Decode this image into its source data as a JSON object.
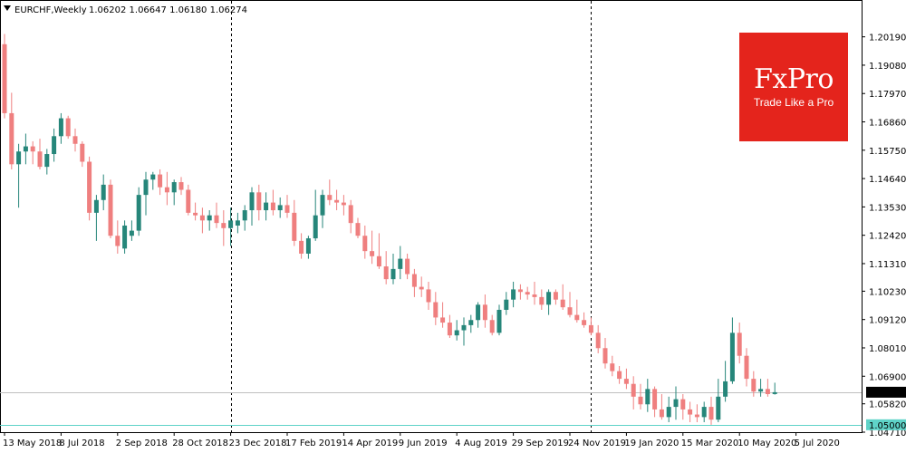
{
  "header": {
    "symbol": "EURCHF,Weekly",
    "ohlc": "1.06202 1.06647 1.06180 1.06274"
  },
  "logo": {
    "brand": "FxPro",
    "tagline": "Trade Like a Pro",
    "color": "#e4241c"
  },
  "colors": {
    "bull": "#26867a",
    "bear": "#ef7f7f",
    "grid": "#d9d9d9",
    "vline": "#000000",
    "support": "#5fd3c8"
  },
  "chart_data": {
    "type": "candlestick",
    "symbol": "EURCHF",
    "timeframe": "Weekly",
    "ylim": [
      1.0471,
      1.211
    ],
    "yticks": [
      "1.20190",
      "1.19080",
      "1.17970",
      "1.16860",
      "1.15750",
      "1.14640",
      "1.13530",
      "1.12420",
      "1.11310",
      "1.10230",
      "1.09120",
      "1.08010",
      "1.06900",
      "1.05820",
      "1.04710"
    ],
    "xticks": [
      {
        "label": "13 May 2018",
        "index": 0
      },
      {
        "label": "8 Jul 2018",
        "index": 8
      },
      {
        "label": "2 Sep 2018",
        "index": 16
      },
      {
        "label": "28 Oct 2018",
        "index": 24
      },
      {
        "label": "23 Dec 2018",
        "index": 32
      },
      {
        "label": "17 Feb 2019",
        "index": 40
      },
      {
        "label": "14 Apr 2019",
        "index": 48
      },
      {
        "label": "9 Jun 2019",
        "index": 56
      },
      {
        "label": "4 Aug 2019",
        "index": 64
      },
      {
        "label": "29 Sep 2019",
        "index": 72
      },
      {
        "label": "24 Nov 2019",
        "index": 80
      },
      {
        "label": "19 Jan 2020",
        "index": 88
      },
      {
        "label": "15 Mar 2020",
        "index": 96
      },
      {
        "label": "10 May 2020",
        "index": 104
      },
      {
        "label": "5 Jul 2020",
        "index": 112
      }
    ],
    "current_price": {
      "value": 1.06274,
      "label": "1.06274"
    },
    "support_level": {
      "value": 1.05,
      "label": "1.05000"
    },
    "vertical_markers": [
      32,
      83
    ],
    "candles": [
      {
        "o": 1.199,
        "h": 1.203,
        "l": 1.17,
        "c": 1.172
      },
      {
        "o": 1.172,
        "h": 1.18,
        "l": 1.15,
        "c": 1.152
      },
      {
        "o": 1.152,
        "h": 1.16,
        "l": 1.135,
        "c": 1.157
      },
      {
        "o": 1.157,
        "h": 1.164,
        "l": 1.152,
        "c": 1.159
      },
      {
        "o": 1.159,
        "h": 1.161,
        "l": 1.152,
        "c": 1.157
      },
      {
        "o": 1.157,
        "h": 1.162,
        "l": 1.15,
        "c": 1.151
      },
      {
        "o": 1.151,
        "h": 1.158,
        "l": 1.148,
        "c": 1.156
      },
      {
        "o": 1.156,
        "h": 1.166,
        "l": 1.153,
        "c": 1.163
      },
      {
        "o": 1.163,
        "h": 1.172,
        "l": 1.16,
        "c": 1.17
      },
      {
        "o": 1.17,
        "h": 1.171,
        "l": 1.162,
        "c": 1.163
      },
      {
        "o": 1.163,
        "h": 1.166,
        "l": 1.157,
        "c": 1.16
      },
      {
        "o": 1.16,
        "h": 1.161,
        "l": 1.151,
        "c": 1.153
      },
      {
        "o": 1.153,
        "h": 1.155,
        "l": 1.13,
        "c": 1.133
      },
      {
        "o": 1.133,
        "h": 1.14,
        "l": 1.122,
        "c": 1.138
      },
      {
        "o": 1.138,
        "h": 1.148,
        "l": 1.134,
        "c": 1.144
      },
      {
        "o": 1.144,
        "h": 1.146,
        "l": 1.123,
        "c": 1.124
      },
      {
        "o": 1.124,
        "h": 1.13,
        "l": 1.117,
        "c": 1.12
      },
      {
        "o": 1.119,
        "h": 1.13,
        "l": 1.117,
        "c": 1.128
      },
      {
        "o": 1.124,
        "h": 1.13,
        "l": 1.122,
        "c": 1.126
      },
      {
        "o": 1.126,
        "h": 1.143,
        "l": 1.124,
        "c": 1.14
      },
      {
        "o": 1.14,
        "h": 1.149,
        "l": 1.132,
        "c": 1.146
      },
      {
        "o": 1.146,
        "h": 1.149,
        "l": 1.142,
        "c": 1.148
      },
      {
        "o": 1.148,
        "h": 1.15,
        "l": 1.14,
        "c": 1.143
      },
      {
        "o": 1.143,
        "h": 1.149,
        "l": 1.136,
        "c": 1.141
      },
      {
        "o": 1.141,
        "h": 1.146,
        "l": 1.136,
        "c": 1.145
      },
      {
        "o": 1.145,
        "h": 1.147,
        "l": 1.14,
        "c": 1.142
      },
      {
        "o": 1.142,
        "h": 1.144,
        "l": 1.132,
        "c": 1.133
      },
      {
        "o": 1.133,
        "h": 1.137,
        "l": 1.13,
        "c": 1.132
      },
      {
        "o": 1.132,
        "h": 1.135,
        "l": 1.125,
        "c": 1.13
      },
      {
        "o": 1.13,
        "h": 1.134,
        "l": 1.126,
        "c": 1.132
      },
      {
        "o": 1.132,
        "h": 1.137,
        "l": 1.127,
        "c": 1.129
      },
      {
        "o": 1.129,
        "h": 1.134,
        "l": 1.12,
        "c": 1.127
      },
      {
        "o": 1.127,
        "h": 1.135,
        "l": 1.12,
        "c": 1.13
      },
      {
        "o": 1.128,
        "h": 1.133,
        "l": 1.125,
        "c": 1.13
      },
      {
        "o": 1.13,
        "h": 1.136,
        "l": 1.126,
        "c": 1.134
      },
      {
        "o": 1.134,
        "h": 1.143,
        "l": 1.128,
        "c": 1.141
      },
      {
        "o": 1.141,
        "h": 1.144,
        "l": 1.13,
        "c": 1.134
      },
      {
        "o": 1.134,
        "h": 1.141,
        "l": 1.13,
        "c": 1.137
      },
      {
        "o": 1.137,
        "h": 1.142,
        "l": 1.132,
        "c": 1.134
      },
      {
        "o": 1.134,
        "h": 1.139,
        "l": 1.131,
        "c": 1.136
      },
      {
        "o": 1.136,
        "h": 1.14,
        "l": 1.131,
        "c": 1.133
      },
      {
        "o": 1.133,
        "h": 1.138,
        "l": 1.12,
        "c": 1.122
      },
      {
        "o": 1.122,
        "h": 1.125,
        "l": 1.115,
        "c": 1.117
      },
      {
        "o": 1.117,
        "h": 1.124,
        "l": 1.115,
        "c": 1.123
      },
      {
        "o": 1.123,
        "h": 1.142,
        "l": 1.122,
        "c": 1.132
      },
      {
        "o": 1.132,
        "h": 1.142,
        "l": 1.127,
        "c": 1.14
      },
      {
        "o": 1.14,
        "h": 1.146,
        "l": 1.136,
        "c": 1.138
      },
      {
        "o": 1.138,
        "h": 1.142,
        "l": 1.134,
        "c": 1.137
      },
      {
        "o": 1.137,
        "h": 1.14,
        "l": 1.132,
        "c": 1.136
      },
      {
        "o": 1.136,
        "h": 1.138,
        "l": 1.125,
        "c": 1.129
      },
      {
        "o": 1.129,
        "h": 1.131,
        "l": 1.123,
        "c": 1.124
      },
      {
        "o": 1.124,
        "h": 1.128,
        "l": 1.115,
        "c": 1.118
      },
      {
        "o": 1.118,
        "h": 1.126,
        "l": 1.113,
        "c": 1.116
      },
      {
        "o": 1.116,
        "h": 1.125,
        "l": 1.111,
        "c": 1.112
      },
      {
        "o": 1.112,
        "h": 1.118,
        "l": 1.105,
        "c": 1.107
      },
      {
        "o": 1.107,
        "h": 1.117,
        "l": 1.105,
        "c": 1.111
      },
      {
        "o": 1.111,
        "h": 1.12,
        "l": 1.107,
        "c": 1.115
      },
      {
        "o": 1.115,
        "h": 1.117,
        "l": 1.107,
        "c": 1.109
      },
      {
        "o": 1.109,
        "h": 1.111,
        "l": 1.1,
        "c": 1.104
      },
      {
        "o": 1.104,
        "h": 1.108,
        "l": 1.1,
        "c": 1.103
      },
      {
        "o": 1.103,
        "h": 1.106,
        "l": 1.095,
        "c": 1.098
      },
      {
        "o": 1.098,
        "h": 1.102,
        "l": 1.089,
        "c": 1.092
      },
      {
        "o": 1.092,
        "h": 1.098,
        "l": 1.088,
        "c": 1.09
      },
      {
        "o": 1.09,
        "h": 1.093,
        "l": 1.084,
        "c": 1.085
      },
      {
        "o": 1.085,
        "h": 1.091,
        "l": 1.083,
        "c": 1.087
      },
      {
        "o": 1.087,
        "h": 1.092,
        "l": 1.081,
        "c": 1.089
      },
      {
        "o": 1.089,
        "h": 1.093,
        "l": 1.086,
        "c": 1.091
      },
      {
        "o": 1.091,
        "h": 1.098,
        "l": 1.088,
        "c": 1.097
      },
      {
        "o": 1.097,
        "h": 1.101,
        "l": 1.088,
        "c": 1.091
      },
      {
        "o": 1.091,
        "h": 1.093,
        "l": 1.085,
        "c": 1.086
      },
      {
        "o": 1.086,
        "h": 1.097,
        "l": 1.085,
        "c": 1.095
      },
      {
        "o": 1.095,
        "h": 1.102,
        "l": 1.093,
        "c": 1.099
      },
      {
        "o": 1.099,
        "h": 1.106,
        "l": 1.096,
        "c": 1.103
      },
      {
        "o": 1.103,
        "h": 1.105,
        "l": 1.099,
        "c": 1.102
      },
      {
        "o": 1.102,
        "h": 1.104,
        "l": 1.099,
        "c": 1.101
      },
      {
        "o": 1.101,
        "h": 1.106,
        "l": 1.097,
        "c": 1.1
      },
      {
        "o": 1.1,
        "h": 1.103,
        "l": 1.095,
        "c": 1.097
      },
      {
        "o": 1.097,
        "h": 1.103,
        "l": 1.093,
        "c": 1.102
      },
      {
        "o": 1.102,
        "h": 1.103,
        "l": 1.097,
        "c": 1.099
      },
      {
        "o": 1.099,
        "h": 1.105,
        "l": 1.095,
        "c": 1.096
      },
      {
        "o": 1.096,
        "h": 1.102,
        "l": 1.092,
        "c": 1.093
      },
      {
        "o": 1.093,
        "h": 1.099,
        "l": 1.09,
        "c": 1.091
      },
      {
        "o": 1.091,
        "h": 1.094,
        "l": 1.088,
        "c": 1.089
      },
      {
        "o": 1.089,
        "h": 1.092,
        "l": 1.085,
        "c": 1.086
      },
      {
        "o": 1.086,
        "h": 1.089,
        "l": 1.078,
        "c": 1.08
      },
      {
        "o": 1.08,
        "h": 1.084,
        "l": 1.072,
        "c": 1.074
      },
      {
        "o": 1.074,
        "h": 1.077,
        "l": 1.069,
        "c": 1.071
      },
      {
        "o": 1.071,
        "h": 1.073,
        "l": 1.066,
        "c": 1.068
      },
      {
        "o": 1.068,
        "h": 1.072,
        "l": 1.064,
        "c": 1.066
      },
      {
        "o": 1.066,
        "h": 1.069,
        "l": 1.056,
        "c": 1.061
      },
      {
        "o": 1.061,
        "h": 1.066,
        "l": 1.056,
        "c": 1.058
      },
      {
        "o": 1.058,
        "h": 1.068,
        "l": 1.055,
        "c": 1.064
      },
      {
        "o": 1.064,
        "h": 1.065,
        "l": 1.053,
        "c": 1.056
      },
      {
        "o": 1.056,
        "h": 1.062,
        "l": 1.052,
        "c": 1.053
      },
      {
        "o": 1.053,
        "h": 1.061,
        "l": 1.051,
        "c": 1.057
      },
      {
        "o": 1.057,
        "h": 1.065,
        "l": 1.052,
        "c": 1.06
      },
      {
        "o": 1.06,
        "h": 1.062,
        "l": 1.052,
        "c": 1.056
      },
      {
        "o": 1.056,
        "h": 1.059,
        "l": 1.051,
        "c": 1.054
      },
      {
        "o": 1.054,
        "h": 1.058,
        "l": 1.051,
        "c": 1.053
      },
      {
        "o": 1.053,
        "h": 1.059,
        "l": 1.051,
        "c": 1.057
      },
      {
        "o": 1.057,
        "h": 1.061,
        "l": 1.05,
        "c": 1.052
      },
      {
        "o": 1.052,
        "h": 1.068,
        "l": 1.051,
        "c": 1.061
      },
      {
        "o": 1.061,
        "h": 1.075,
        "l": 1.059,
        "c": 1.067
      },
      {
        "o": 1.067,
        "h": 1.092,
        "l": 1.066,
        "c": 1.086
      },
      {
        "o": 1.086,
        "h": 1.09,
        "l": 1.074,
        "c": 1.077
      },
      {
        "o": 1.077,
        "h": 1.08,
        "l": 1.065,
        "c": 1.068
      },
      {
        "o": 1.068,
        "h": 1.071,
        "l": 1.061,
        "c": 1.063
      },
      {
        "o": 1.063,
        "h": 1.068,
        "l": 1.061,
        "c": 1.064
      },
      {
        "o": 1.064,
        "h": 1.068,
        "l": 1.061,
        "c": 1.062
      },
      {
        "o": 1.06202,
        "h": 1.06647,
        "l": 1.0618,
        "c": 1.06274
      }
    ]
  }
}
